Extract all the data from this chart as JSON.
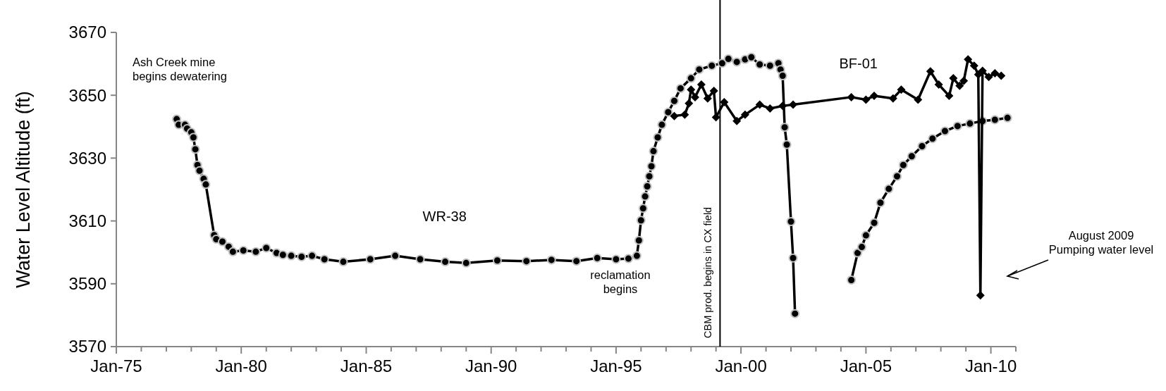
{
  "chart_data": {
    "type": "line",
    "ylabel": "Water Level Altitude (ft)",
    "xlim": [
      "1975-01",
      "2011-01"
    ],
    "ylim": [
      3570,
      3670
    ],
    "xticks": [
      {
        "value": "1975-01",
        "label": "Jan-75"
      },
      {
        "value": "1976-01",
        "label": null
      },
      {
        "value": "1977-01",
        "label": null
      },
      {
        "value": "1978-01",
        "label": null
      },
      {
        "value": "1979-01",
        "label": null
      },
      {
        "value": "1980-01",
        "label": "Jan-80"
      },
      {
        "value": "1981-01",
        "label": null
      },
      {
        "value": "1982-01",
        "label": null
      },
      {
        "value": "1983-01",
        "label": null
      },
      {
        "value": "1984-01",
        "label": null
      },
      {
        "value": "1985-01",
        "label": "Jan-85"
      },
      {
        "value": "1986-01",
        "label": null
      },
      {
        "value": "1987-01",
        "label": null
      },
      {
        "value": "1988-01",
        "label": null
      },
      {
        "value": "1989-01",
        "label": null
      },
      {
        "value": "1990-01",
        "label": "Jan-90"
      },
      {
        "value": "1991-01",
        "label": null
      },
      {
        "value": "1992-01",
        "label": null
      },
      {
        "value": "1993-01",
        "label": null
      },
      {
        "value": "1994-01",
        "label": null
      },
      {
        "value": "1995-01",
        "label": "Jan-95"
      },
      {
        "value": "1996-01",
        "label": null
      },
      {
        "value": "1997-01",
        "label": null
      },
      {
        "value": "1998-01",
        "label": null
      },
      {
        "value": "1999-01",
        "label": null
      },
      {
        "value": "2000-01",
        "label": "Jan-00"
      },
      {
        "value": "2001-01",
        "label": null
      },
      {
        "value": "2002-01",
        "label": null
      },
      {
        "value": "2003-01",
        "label": null
      },
      {
        "value": "2004-01",
        "label": null
      },
      {
        "value": "2005-01",
        "label": "Jan-05"
      },
      {
        "value": "2006-01",
        "label": null
      },
      {
        "value": "2007-01",
        "label": null
      },
      {
        "value": "2008-01",
        "label": null
      },
      {
        "value": "2009-01",
        "label": null
      },
      {
        "value": "2010-01",
        "label": "Jan-10"
      },
      {
        "value": "2011-01",
        "label": null
      }
    ],
    "yticks": [
      3570,
      3590,
      3610,
      3630,
      3650,
      3670
    ],
    "grid": false,
    "series": [
      {
        "name": "WR-38",
        "color": "#000000",
        "marker": "circle",
        "x": [
          "1977-06",
          "1977-07",
          "1977-10",
          "1977-11",
          "1978-01",
          "1978-02",
          "1978-03",
          "1978-04",
          "1978-05",
          "1978-07",
          "1978-08",
          "1978-12",
          "1979-01",
          "1979-04",
          "1979-07",
          "1979-09",
          "1980-02",
          "1980-08",
          "1981-01",
          "1981-06",
          "1981-09",
          "1982-01",
          "1982-06",
          "1982-11",
          "1983-05",
          "1984-02",
          "1985-03",
          "1986-03",
          "1987-03",
          "1988-03",
          "1989-01",
          "1990-04",
          "1991-06",
          "1992-06",
          "1993-06",
          "1994-04",
          "1995-01",
          "1995-07",
          "1995-11",
          "1995-12",
          "1996-01",
          "1996-02",
          "1996-03",
          "1996-04",
          "1996-05",
          "1996-06",
          "1996-07",
          "1996-09",
          "1996-11",
          "1997-02",
          "1997-05",
          "1997-08",
          "1998-01",
          "1998-05",
          "1998-11",
          "1999-04",
          "1999-07",
          "1999-11",
          "2000-03",
          "2000-06",
          "2000-10",
          "2001-03",
          "2001-07",
          "2001-08",
          "2001-09",
          "2001-10",
          "2001-11",
          "2002-01",
          "2002-02",
          "2002-03",
          "2003-06",
          "2004-06",
          "2004-09",
          "2004-11",
          "2005-01",
          "2005-05",
          "2005-08",
          "2005-12",
          "2006-04",
          "2006-07",
          "2006-11",
          "2007-04",
          "2007-09",
          "2008-03",
          "2008-09",
          "2009-03",
          "2009-09",
          "2010-03",
          "2010-09"
        ],
        "values": [
          3642.4,
          3640.6,
          3640.6,
          3639.4,
          3638.2,
          3636.6,
          3632.8,
          3627.8,
          3626,
          3623.4,
          3621.6,
          3605.5,
          3604.2,
          3603.4,
          3601.8,
          3600.2,
          3600.6,
          3600.2,
          3601.4,
          3599.8,
          3599.2,
          3598.9,
          3598.6,
          3598.9,
          3597.8,
          3597,
          3597.8,
          3598.9,
          3597.8,
          3597,
          3596.6,
          3597.4,
          3597.2,
          3597.6,
          3597.2,
          3598.2,
          3597.8,
          3598,
          3598.9,
          3603.8,
          3610.2,
          3614,
          3617.8,
          3621,
          3624.2,
          3627.4,
          3632.2,
          3636.6,
          3640.6,
          3644.6,
          3648.2,
          3652.2,
          3655.4,
          3658.2,
          3659.4,
          3660.2,
          3661.6,
          3660.6,
          3661.4,
          3662.1,
          3659.8,
          3659.4,
          3660.2,
          3658.2,
          3656.2,
          3639.8,
          3634.3,
          3609.8,
          3598.2,
          3580.5,
          null,
          3591.2,
          3599.8,
          3601.7,
          3605.4,
          3609.4,
          3615.8,
          3620.2,
          3624.2,
          3627.8,
          3630.6,
          3633.8,
          3636.2,
          3638.6,
          3640.2,
          3641,
          3641.8,
          3642.2,
          3642.8
        ]
      },
      {
        "name": "BF-01",
        "color": "#000000",
        "marker": "diamond",
        "x": [
          "1997-05",
          "1997-10",
          "1997-12",
          "1998-01",
          "1998-03",
          "1998-06",
          "1998-09",
          "1998-12",
          "1999-01",
          "1999-05",
          "1999-11",
          "2000-03",
          "2000-10",
          "2001-03",
          "2001-09",
          "2002-02",
          "2004-06",
          "2005-01",
          "2005-05",
          "2006-02",
          "2006-06",
          "2007-02",
          "2007-08",
          "2007-12",
          "2008-05",
          "2008-07",
          "2008-10",
          "2008-12",
          "2009-02",
          "2009-05",
          "2009-07",
          "2009-08",
          "2009-09",
          "2009-12",
          "2010-03",
          "2010-06"
        ],
        "values": [
          3643.4,
          3643.8,
          3647.4,
          3651.8,
          3649.4,
          3653.4,
          3649,
          3651.4,
          3643,
          3647.8,
          3641.8,
          3643.8,
          3647,
          3645.8,
          3646.6,
          3647,
          3649.4,
          3648.6,
          3649.8,
          3649,
          3651.8,
          3648.6,
          3657.6,
          3653.4,
          3649.8,
          3655.4,
          3653,
          3654.6,
          3661.4,
          3659.4,
          3656.6,
          3586.3,
          3657.8,
          3655.8,
          3657,
          3656.2
        ]
      }
    ],
    "ref_lines": [
      {
        "axis": "x",
        "value": "1999-03",
        "label": "CBM prod. begins in CX field",
        "color": "#000000"
      }
    ],
    "annotations": [
      "Ash Creek mine\nbegins dewatering",
      "reclamation\nbegins",
      "August 2009\nPumping water level"
    ]
  }
}
